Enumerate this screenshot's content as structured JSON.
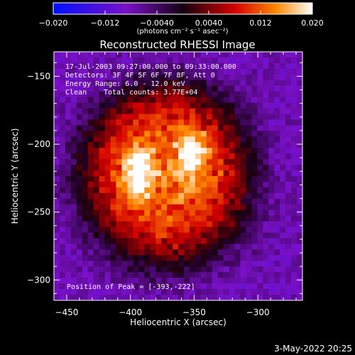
{
  "chart_data": {
    "type": "heatmap",
    "title": "Reconstructed RHESSI Image",
    "xlabel": "Heliocentric X (arcsec)",
    "ylabel": "Heliocentric Y (arcsec)",
    "xlim": [
      -460,
      -265
    ],
    "ylim": [
      -315,
      -132
    ],
    "x_ticks": [
      -450,
      -400,
      -350,
      -300
    ],
    "y_ticks": [
      -150,
      -200,
      -250,
      -300
    ],
    "x_tick_labels": [
      "−450",
      "−400",
      "−350",
      "−300"
    ],
    "y_tick_labels": [
      "−150",
      "−200",
      "−250",
      "−300"
    ],
    "colorbar": {
      "range": [
        -0.02,
        0.02
      ],
      "ticks": [
        -0.02,
        -0.012,
        -0.004,
        0.004,
        0.012,
        0.02
      ],
      "tick_labels": [
        "−0.020",
        "−0.012",
        "−0.0040",
        "0.0040",
        "0.012",
        "0.020"
      ],
      "unit_label": "(photons cm⁻² s⁻¹ asec⁻²)"
    },
    "sources": [
      {
        "x": -393,
        "y": -222,
        "peak": 0.02
      },
      {
        "x": -352,
        "y": -207,
        "peak": 0.019
      }
    ],
    "background_level": -0.008,
    "annotations": {
      "time": "17-Jul-2003 09:27:00.000 to 09:33:00.000",
      "detectors": "Detectors: 3F 4F 5F 6F 7F 8F, Att 0",
      "energy": "Energy Range: 6.0 - 12.0 keV",
      "method": "Clean",
      "counts": "Total counts: 3.77E+04",
      "peak": "Position of Peak = [-393,-222]"
    },
    "grid": false,
    "colors": {
      "background": "#000000",
      "axes": "#ffffff",
      "low": "#0000ff",
      "mid": "#ff0000",
      "high": "#ffffff"
    }
  },
  "footer": {
    "date": "3-May-2022 20:25"
  }
}
